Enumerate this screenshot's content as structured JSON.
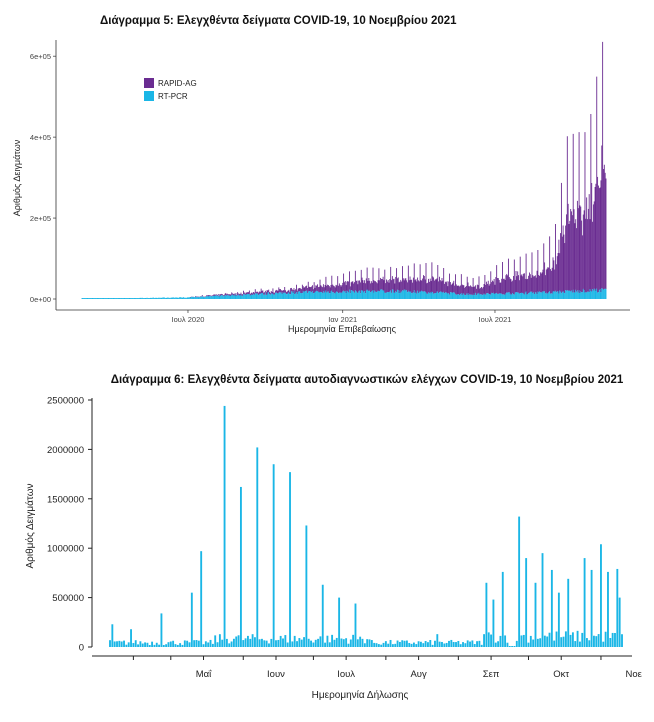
{
  "chart_data": [
    {
      "type": "bar",
      "title": "Διάγραμμα 5: Ελεγχθέντα δείγματα COVID-19, 10 Νοεμβρίου 2021",
      "xlabel": "Ημερομηνία Επιβεβαίωσης",
      "ylabel": "Αριθμός Δειγμάτων",
      "stacked": true,
      "ylim": [
        0,
        640000
      ],
      "yticks": [
        0,
        200000,
        400000,
        600000
      ],
      "ytick_labels": [
        "0e+00",
        "2e+05",
        "4e+05",
        "6e+05"
      ],
      "xtick_labels": [
        "Ιουλ 2020",
        "Ιαν 2021",
        "Ιουλ 2021"
      ],
      "xtick_dates": [
        "2020-07-01",
        "2021-01-01",
        "2021-07-01"
      ],
      "x_range": [
        "2020-02-26",
        "2021-11-10"
      ],
      "grid": false,
      "legend": "top-left",
      "series": [
        {
          "name": "RAPID-AG",
          "color": "#6a2c91",
          "note": "weekly peaks",
          "peaks": [
            {
              "date": "2020-11-01",
              "value": 15000
            },
            {
              "date": "2020-12-15",
              "value": 35000
            },
            {
              "date": "2021-02-01",
              "value": 55000
            },
            {
              "date": "2021-03-15",
              "value": 60000
            },
            {
              "date": "2021-04-15",
              "value": 75000
            },
            {
              "date": "2021-05-10",
              "value": 50000
            },
            {
              "date": "2021-06-15",
              "value": 40000
            },
            {
              "date": "2021-07-10",
              "value": 80000
            },
            {
              "date": "2021-08-20",
              "value": 100000
            },
            {
              "date": "2021-09-10",
              "value": 150000
            },
            {
              "date": "2021-09-25",
              "value": 380000
            },
            {
              "date": "2021-10-20",
              "value": 400000
            },
            {
              "date": "2021-11-08",
              "value": 635000
            }
          ]
        },
        {
          "name": "RT-PCR",
          "color": "#1ab6e6",
          "peaks": [
            {
              "date": "2020-07-01",
              "value": 5000
            },
            {
              "date": "2020-11-01",
              "value": 20000
            },
            {
              "date": "2021-03-01",
              "value": 25000
            },
            {
              "date": "2021-06-01",
              "value": 15000
            },
            {
              "date": "2021-09-01",
              "value": 20000
            },
            {
              "date": "2021-11-08",
              "value": 28000
            }
          ]
        }
      ]
    },
    {
      "type": "bar",
      "title": "Διάγραμμα 6: Ελεγχθέντα δείγματα αυτοδιαγνωστικών ελέγχων COVID-19, 10 Νοεμβρίου 2021",
      "xlabel": "Ημερομηνία Δήλωσης",
      "ylabel": "Αριθμός Δειγμάτων",
      "ylim": [
        0,
        2500000
      ],
      "yticks": [
        0,
        500000,
        1000000,
        1500000,
        2000000,
        2500000
      ],
      "ytick_labels": [
        "0",
        "500000",
        "1000000",
        "1500000",
        "2000000",
        "2500000"
      ],
      "xtick_labels": [
        "Μαΐ",
        "Ιουν",
        "Ιουλ",
        "Αυγ",
        "Σεπ",
        "Οκτ",
        "Νοε"
      ],
      "x_range": [
        "2021-04-05",
        "2021-11-10"
      ],
      "grid": false,
      "color": "#1ab6e6",
      "values_note": "daily totals, weekly spikes",
      "spikes": [
        {
          "date": "2021-04-06",
          "value": 230000
        },
        {
          "date": "2021-04-14",
          "value": 180000
        },
        {
          "date": "2021-04-27",
          "value": 340000
        },
        {
          "date": "2021-05-10",
          "value": 550000
        },
        {
          "date": "2021-05-14",
          "value": 970000
        },
        {
          "date": "2021-05-24",
          "value": 2440000
        },
        {
          "date": "2021-05-31",
          "value": 1620000
        },
        {
          "date": "2021-06-07",
          "value": 2020000
        },
        {
          "date": "2021-06-14",
          "value": 1850000
        },
        {
          "date": "2021-06-21",
          "value": 1770000
        },
        {
          "date": "2021-06-28",
          "value": 1230000
        },
        {
          "date": "2021-07-05",
          "value": 630000
        },
        {
          "date": "2021-07-12",
          "value": 500000
        },
        {
          "date": "2021-07-19",
          "value": 440000
        },
        {
          "date": "2021-08-23",
          "value": 130000
        },
        {
          "date": "2021-09-13",
          "value": 650000
        },
        {
          "date": "2021-09-16",
          "value": 480000
        },
        {
          "date": "2021-09-20",
          "value": 760000
        },
        {
          "date": "2021-09-27",
          "value": 1320000
        },
        {
          "date": "2021-09-30",
          "value": 900000
        },
        {
          "date": "2021-10-04",
          "value": 650000
        },
        {
          "date": "2021-10-07",
          "value": 950000
        },
        {
          "date": "2021-10-11",
          "value": 780000
        },
        {
          "date": "2021-10-14",
          "value": 550000
        },
        {
          "date": "2021-10-18",
          "value": 690000
        },
        {
          "date": "2021-10-25",
          "value": 900000
        },
        {
          "date": "2021-10-28",
          "value": 780000
        },
        {
          "date": "2021-11-01",
          "value": 1040000
        },
        {
          "date": "2021-11-04",
          "value": 760000
        },
        {
          "date": "2021-11-08",
          "value": 790000
        },
        {
          "date": "2021-11-09",
          "value": 500000
        }
      ]
    }
  ]
}
